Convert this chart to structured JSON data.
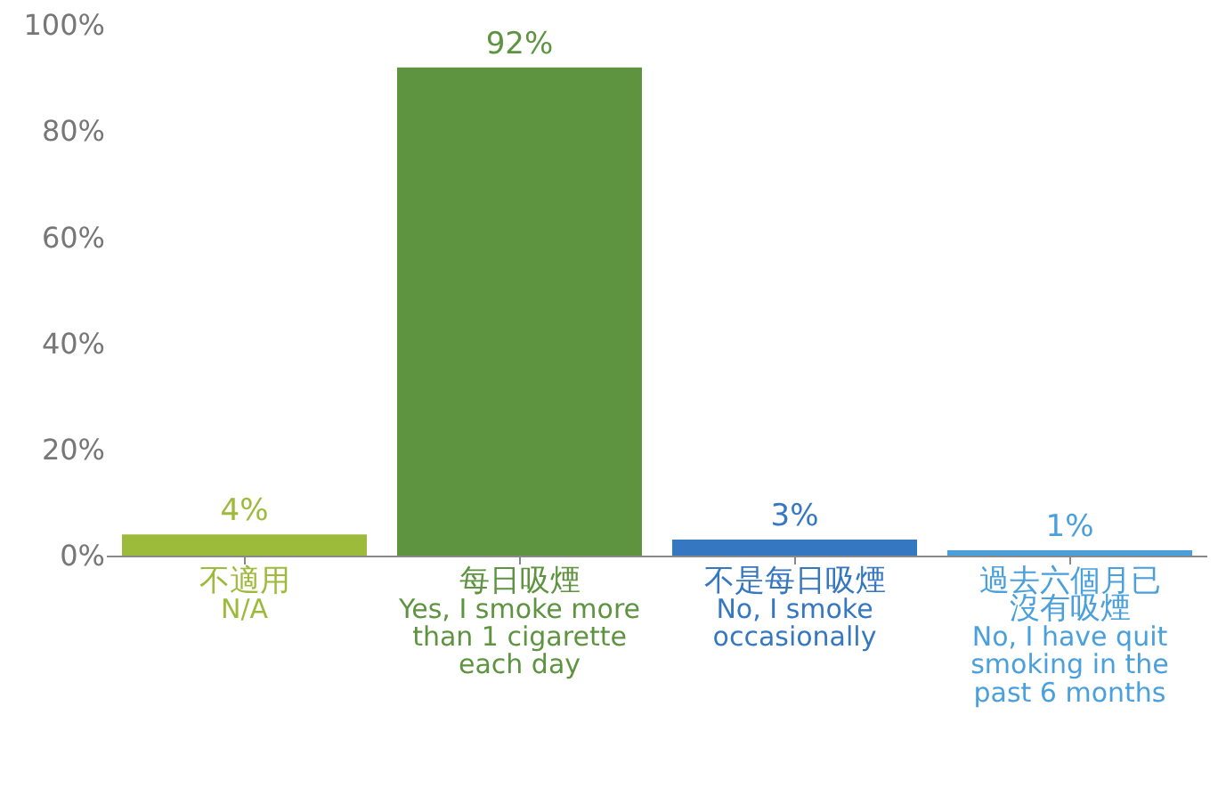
{
  "chart_data": {
    "type": "bar",
    "categories": [
      "不適用\nN/A",
      "每日吸煙\nYes, I smoke more\nthan 1 cigarette\neach day",
      "不是每日吸煙\nNo, I smoke\noccasionally",
      "過去六個月已沒有吸煙\nNo, I have quit\nsmoking in the\npast 6 months"
    ],
    "values": [
      4,
      92,
      3,
      1
    ],
    "colors": [
      "#9dbb3a",
      "#5e9440",
      "#3677c2",
      "#4aa0dc"
    ],
    "value_labels": [
      "4%",
      "92%",
      "3%",
      "1%"
    ],
    "ylim": [
      0,
      100
    ],
    "yticks": [
      {
        "value": 0,
        "label": "0%"
      },
      {
        "value": 20,
        "label": "20%"
      },
      {
        "value": 40,
        "label": "40%"
      },
      {
        "value": 60,
        "label": "60%"
      },
      {
        "value": 80,
        "label": "80%"
      },
      {
        "value": 100,
        "label": "100%"
      }
    ],
    "grid": false
  }
}
